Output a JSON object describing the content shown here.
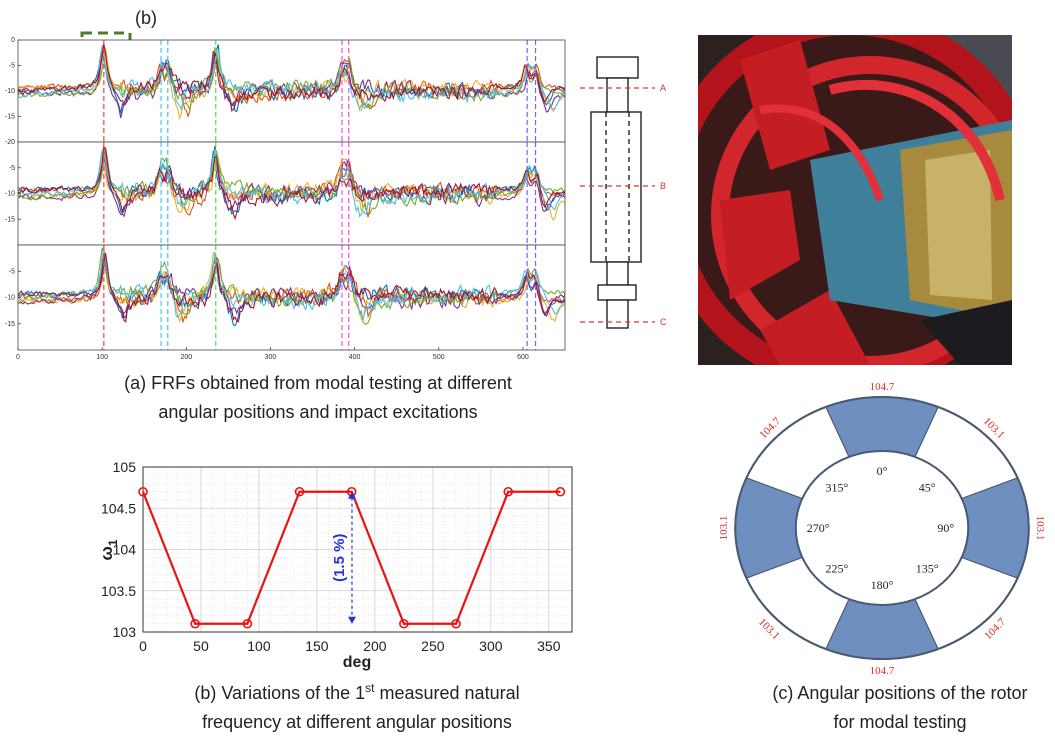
{
  "figure_a": {
    "label": "(b)",
    "xlim": [
      0,
      650
    ],
    "xticks": [
      0,
      100,
      200,
      300,
      400,
      500,
      600
    ],
    "subplots": [
      {
        "ylim": [
          -20,
          0
        ],
        "yticks": [
          0,
          -5,
          -10,
          -15,
          -20
        ]
      },
      {
        "ylim": [
          -20,
          0
        ],
        "yticks": [
          -5,
          -10,
          -15
        ]
      },
      {
        "ylim": [
          -20,
          0
        ],
        "yticks": [
          -5,
          -10,
          -15
        ]
      }
    ],
    "markers": [
      {
        "x": 102,
        "color": "#ff3b3b"
      },
      {
        "x": 170,
        "color": "#3cc8f0"
      },
      {
        "x": 178,
        "color": "#3cc8f0"
      },
      {
        "x": 235,
        "color": "#5ad65a"
      },
      {
        "x": 385,
        "color": "#ff4fd8"
      },
      {
        "x": 393,
        "color": "#ff4fd8"
      },
      {
        "x": 605,
        "color": "#7a5cff"
      },
      {
        "x": 615,
        "color": "#7a5cff"
      }
    ],
    "curve_colors": [
      "#0072BD",
      "#D95319",
      "#EDB120",
      "#7E2F8E",
      "#77AC30",
      "#4DBEEE",
      "#A2142F"
    ]
  },
  "rotor_diagram": {
    "labels": [
      "A",
      "B",
      "C"
    ]
  },
  "caption_a": [
    "(a) FRFs obtained from modal testing at different",
    "angular positions and impact excitations"
  ],
  "chart_data": {
    "type": "line",
    "x": [
      0,
      45,
      90,
      135,
      180,
      225,
      270,
      315,
      360
    ],
    "values": [
      104.7,
      103.1,
      103.1,
      104.7,
      104.7,
      103.1,
      103.1,
      104.7,
      104.7
    ],
    "color": "#ee1111",
    "xlim": [
      0,
      370
    ],
    "xticks": [
      0,
      50,
      100,
      150,
      200,
      250,
      300,
      350
    ],
    "ylim": [
      103,
      105
    ],
    "yticks": [
      103,
      {
        "value": 103.5,
        "label": "103.5"
      },
      104,
      {
        "value": 104.5,
        "label": "104.5"
      },
      105
    ],
    "grid": true,
    "minor_grid": true,
    "xlabel": "deg",
    "ylabel": {
      "text": "ω",
      "sub": "1"
    },
    "annotation": "(1.5 %)"
  },
  "caption_b": {
    "pre": "(b) Variations of the 1",
    "sup": "st",
    "post": " measured natural",
    "line2": "frequency at different angular positions"
  },
  "ring": {
    "fill_color": "#6f8fc1",
    "sectors": [
      {
        "angle": "0°",
        "freq": 104.7,
        "filled": true
      },
      {
        "angle": "45°",
        "freq": 103.1,
        "filled": false
      },
      {
        "angle": "90°",
        "freq": 103.1,
        "filled": true
      },
      {
        "angle": "135°",
        "freq": 104.7,
        "filled": false
      },
      {
        "angle": "180°",
        "freq": 104.7,
        "filled": true
      },
      {
        "angle": "225°",
        "freq": 103.1,
        "filled": false
      },
      {
        "angle": "270°",
        "freq": 103.1,
        "filled": true
      },
      {
        "angle": "315°",
        "freq": 104.7,
        "filled": false
      }
    ]
  },
  "caption_c": [
    "(c) Angular positions of the rotor",
    "for modal testing"
  ]
}
